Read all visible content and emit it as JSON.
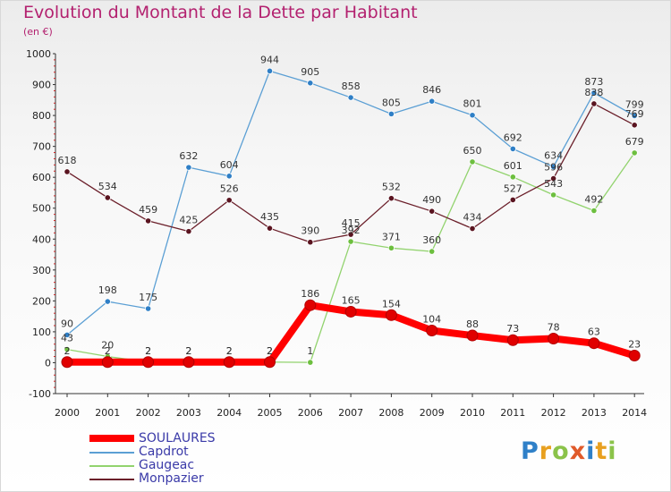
{
  "title": "Evolution du Montant de la Dette par Habitant",
  "subtitle": "(en €)",
  "logo_text": "Proxiti",
  "logo_colors": [
    "#2f80c8",
    "#e8a020",
    "#8bc34a",
    "#e05a2a",
    "#2f80c8",
    "#e8a020",
    "#8bc34a"
  ],
  "chart_data": {
    "type": "line",
    "categories": [
      "2000",
      "2001",
      "2002",
      "2003",
      "2004",
      "2005",
      "2006",
      "2007",
      "2008",
      "2009",
      "2010",
      "2011",
      "2012",
      "2013",
      "2014"
    ],
    "ylim": [
      -100,
      1000
    ],
    "yticks": [
      -100,
      0,
      100,
      200,
      300,
      400,
      500,
      600,
      700,
      800,
      900,
      1000
    ],
    "grid": false,
    "legend_position": "bottom-left",
    "series": [
      {
        "name": "Capdrot",
        "color": "#5b9fd4",
        "point_color": "#2f7fc6",
        "values": [
          90,
          198,
          175,
          632,
          604,
          944,
          905,
          858,
          805,
          846,
          801,
          692,
          634,
          873,
          799
        ]
      },
      {
        "name": "Gaugeac",
        "color": "#92d36e",
        "point_color": "#6dbf3f",
        "values": [
          43,
          20,
          2,
          2,
          2,
          2,
          1,
          392,
          371,
          360,
          650,
          601,
          543,
          492,
          679
        ]
      },
      {
        "name": "Monpazier",
        "color": "#6b1f2a",
        "point_color": "#5a1420",
        "values": [
          618,
          534,
          459,
          425,
          526,
          435,
          390,
          415,
          532,
          490,
          434,
          527,
          596,
          838,
          769
        ]
      },
      {
        "name": "SOULAURES",
        "color": "#ff0000",
        "point_color": "#e00000",
        "values": [
          2,
          2,
          2,
          2,
          2,
          2,
          186,
          165,
          154,
          104,
          88,
          73,
          78,
          63,
          23
        ]
      }
    ]
  }
}
